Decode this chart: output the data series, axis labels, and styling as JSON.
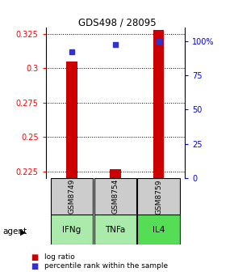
{
  "title": "GDS498 / 28095",
  "samples": [
    "GSM8749",
    "GSM8754",
    "GSM8759"
  ],
  "agents": [
    "IFNg",
    "TNFa",
    "IL4"
  ],
  "x_positions": [
    1,
    2,
    3
  ],
  "log_ratio_values": [
    0.305,
    0.2265,
    0.328
  ],
  "percentile_values": [
    92,
    97.5,
    99.8
  ],
  "ylim_left": [
    0.22,
    0.33
  ],
  "ylim_right": [
    0,
    110
  ],
  "yticks_left": [
    0.225,
    0.25,
    0.275,
    0.3,
    0.325
  ],
  "ytick_labels_left": [
    "0.225",
    "0.25",
    "0.275",
    "0.3",
    "0.325"
  ],
  "yticks_right": [
    0,
    25,
    50,
    75,
    100
  ],
  "ytick_labels_right": [
    "0",
    "25",
    "50",
    "75",
    "100%"
  ],
  "bar_color": "#cc0000",
  "dot_color": "#3333cc",
  "agent_colors": [
    "#aaeaaa",
    "#aaeaaa",
    "#55dd55"
  ],
  "sample_bg_color": "#cccccc",
  "bar_width": 0.25,
  "baseline": 0.22
}
